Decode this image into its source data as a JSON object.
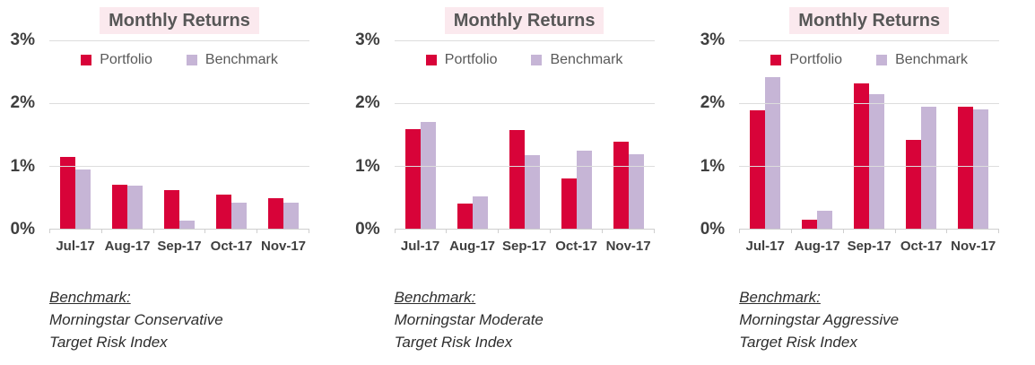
{
  "colors": {
    "portfolio": "#d80339",
    "benchmark": "#c6b5d6",
    "title_bg": "#fbe9ee",
    "title_text": "#575757",
    "axis_label": "#3f3f3f",
    "gridline": "#dddddd",
    "axis_line": "#cfcfcf",
    "footnote_text": "#2e2e2e"
  },
  "chart_data": [
    {
      "type": "bar",
      "title": "Monthly Returns",
      "categories": [
        "Jul-17",
        "Aug-17",
        "Sep-17",
        "Oct-17",
        "Nov-17"
      ],
      "series": [
        {
          "name": "Portfolio",
          "color_key": "portfolio",
          "values": [
            1.15,
            0.7,
            0.61,
            0.55,
            0.49
          ]
        },
        {
          "name": "Benchmark",
          "color_key": "benchmark",
          "values": [
            0.94,
            0.68,
            0.13,
            0.42,
            0.41
          ]
        }
      ],
      "xlabel": "",
      "ylabel": "",
      "ylim": [
        0,
        3
      ],
      "yticks": [
        0,
        1,
        2,
        3
      ],
      "ytick_labels": [
        "0%",
        "1%",
        "2%",
        "3%"
      ],
      "grid": true,
      "legend_position": "top-center",
      "footnote": {
        "heading": "Benchmark:",
        "lines": [
          "Morningstar Conservative",
          "Target Risk Index"
        ]
      }
    },
    {
      "type": "bar",
      "title": "Monthly Returns",
      "categories": [
        "Jul-17",
        "Aug-17",
        "Sep-17",
        "Oct-17",
        "Nov-17"
      ],
      "series": [
        {
          "name": "Portfolio",
          "color_key": "portfolio",
          "values": [
            1.58,
            0.4,
            1.57,
            0.8,
            1.38
          ]
        },
        {
          "name": "Benchmark",
          "color_key": "benchmark",
          "values": [
            1.7,
            0.51,
            1.17,
            1.25,
            1.19
          ]
        }
      ],
      "xlabel": "",
      "ylabel": "",
      "ylim": [
        0,
        3
      ],
      "yticks": [
        0,
        1,
        2,
        3
      ],
      "ytick_labels": [
        "0%",
        "1%",
        "2%",
        "3%"
      ],
      "grid": true,
      "legend_position": "top-center",
      "footnote": {
        "heading": "Benchmark:",
        "lines": [
          "Morningstar Moderate",
          "Target Risk Index"
        ]
      }
    },
    {
      "type": "bar",
      "title": "Monthly Returns",
      "categories": [
        "Jul-17",
        "Aug-17",
        "Sep-17",
        "Oct-17",
        "Nov-17"
      ],
      "series": [
        {
          "name": "Portfolio",
          "color_key": "portfolio",
          "values": [
            1.88,
            0.14,
            2.31,
            1.41,
            1.94
          ]
        },
        {
          "name": "Benchmark",
          "color_key": "benchmark",
          "values": [
            2.41,
            0.29,
            2.14,
            1.94,
            1.9
          ]
        }
      ],
      "xlabel": "",
      "ylabel": "",
      "ylim": [
        0,
        3
      ],
      "yticks": [
        0,
        1,
        2,
        3
      ],
      "ytick_labels": [
        "0%",
        "1%",
        "2%",
        "3%"
      ],
      "grid": true,
      "legend_position": "top-center",
      "footnote": {
        "heading": "Benchmark:",
        "lines": [
          "Morningstar Aggressive",
          "Target Risk Index"
        ]
      }
    }
  ]
}
